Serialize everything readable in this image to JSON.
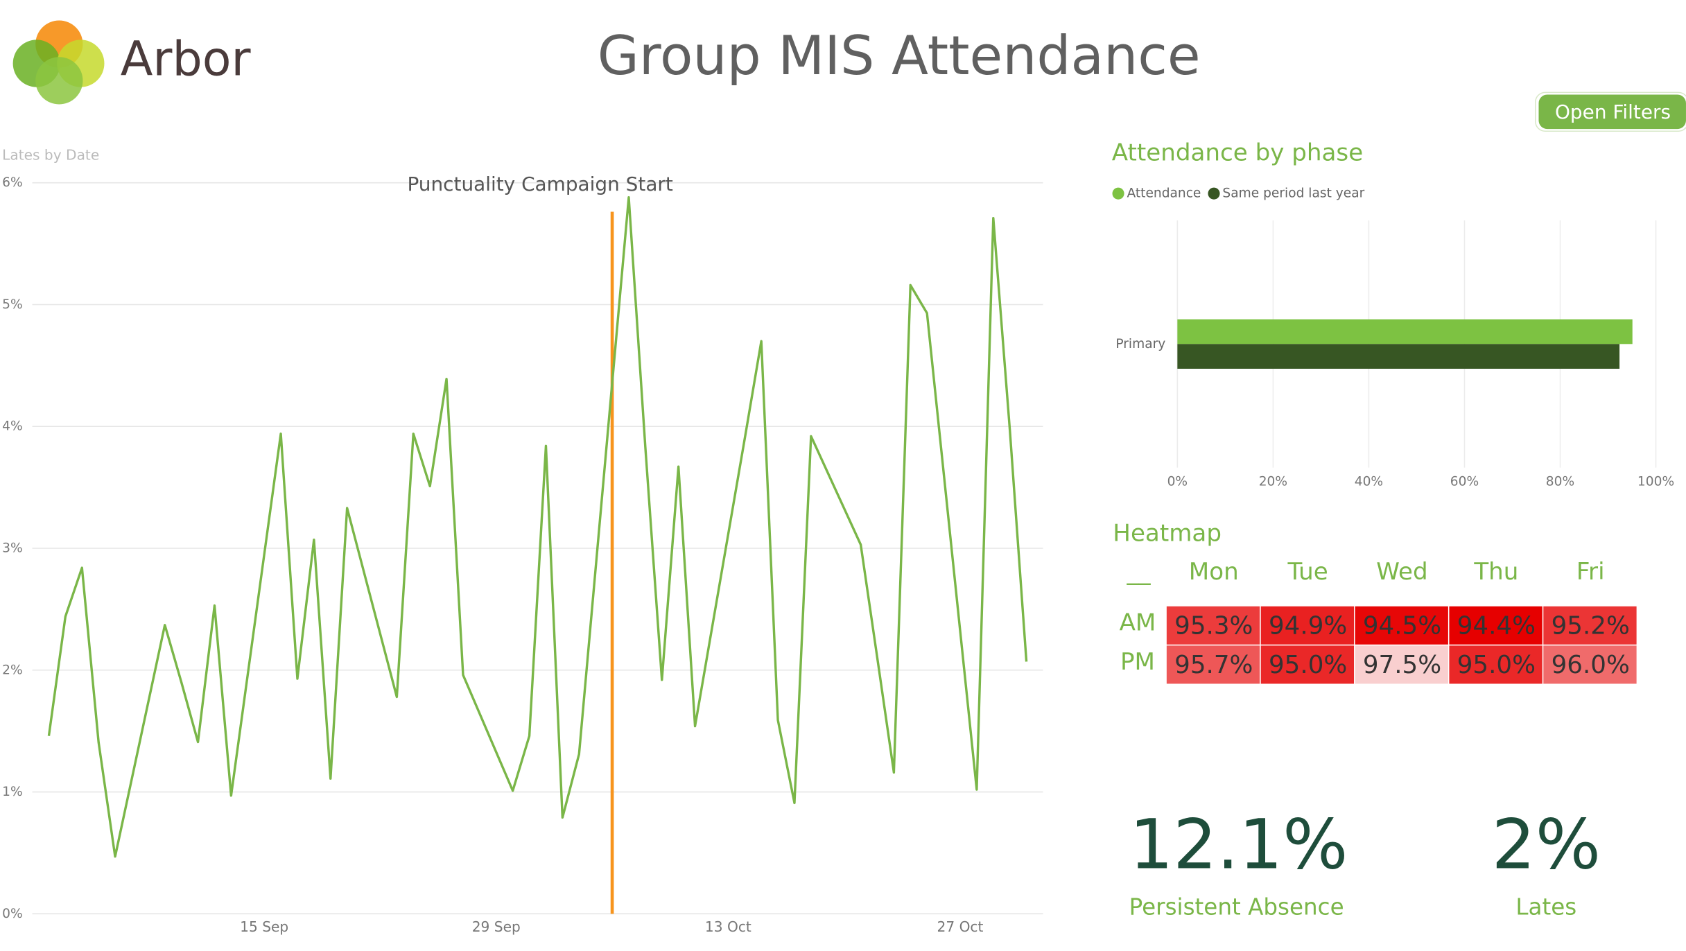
{
  "header": {
    "logo_text": "Arbor",
    "title": "Group MIS Attendance",
    "button": "Open Filters"
  },
  "chart_data": [
    {
      "type": "line",
      "title": "Lates by Date",
      "color": "#7ab648",
      "grid": true,
      "x": [
        "2 Sep",
        "3 Sep",
        "4 Sep",
        "5 Sep",
        "6 Sep",
        "9 Sep",
        "10 Sep",
        "11 Sep",
        "12 Sep",
        "13 Sep",
        "16 Sep",
        "17 Sep",
        "18 Sep",
        "19 Sep",
        "20 Sep",
        "23 Sep",
        "24 Sep",
        "25 Sep",
        "26 Sep",
        "27 Sep",
        "30 Sep",
        "1 Oct",
        "2 Oct",
        "3 Oct",
        "4 Oct",
        "7 Oct",
        "8 Oct",
        "9 Oct",
        "10 Oct",
        "11 Oct",
        "14 Oct",
        "15 Oct",
        "16 Oct",
        "17 Oct",
        "18 Oct",
        "21 Oct",
        "22 Oct",
        "23 Oct",
        "24 Oct",
        "25 Oct",
        "28 Oct",
        "29 Oct",
        "30 Oct",
        "31 Oct"
      ],
      "values": [
        1.46,
        2.44,
        2.84,
        1.41,
        0.47,
        2.37,
        1.9,
        1.41,
        2.53,
        0.97,
        3.94,
        1.93,
        3.07,
        1.11,
        3.33,
        1.78,
        3.94,
        3.51,
        4.39,
        1.96,
        1.01,
        1.46,
        3.84,
        0.79,
        1.31,
        5.88,
        3.83,
        1.92,
        3.67,
        1.54,
        3.9,
        4.7,
        1.59,
        0.91,
        3.92,
        3.03,
        2.1,
        1.16,
        5.16,
        4.93,
        1.02,
        5.71,
        3.97,
        2.07
      ],
      "xlim": [
        "1 Sep",
        "1 Nov"
      ],
      "xticks": [
        "15 Sep",
        "29 Sep",
        "13 Oct",
        "27 Oct"
      ],
      "ylim": [
        0,
        6
      ],
      "yticks": [
        {
          "value": 0,
          "label": "0%"
        },
        {
          "value": 1,
          "label": "1%"
        },
        {
          "value": 2,
          "label": "2%"
        },
        {
          "value": 3,
          "label": "3%"
        },
        {
          "value": 4,
          "label": "4%"
        },
        {
          "value": 5,
          "label": "5%"
        },
        {
          "value": 6,
          "label": "6%"
        }
      ],
      "annotations": [
        {
          "text": "Punctuality Campaign Start",
          "x": "6 Oct",
          "color": "#f7941d"
        }
      ]
    },
    {
      "type": "bar",
      "orientation": "horizontal",
      "title": "Attendance by phase",
      "grid": true,
      "categories": [
        "Primary"
      ],
      "series": [
        {
          "name": "Attendance",
          "color": "#7dc242",
          "values": [
            95.1
          ]
        },
        {
          "name": "Same period last year",
          "color": "#375623",
          "values": [
            92.4
          ]
        }
      ],
      "xlim": [
        0,
        100
      ],
      "xticks": [
        {
          "value": 0,
          "label": "0%"
        },
        {
          "value": 20,
          "label": "20%"
        },
        {
          "value": 40,
          "label": "40%"
        },
        {
          "value": 60,
          "label": "60%"
        },
        {
          "value": 80,
          "label": "80%"
        },
        {
          "value": 100,
          "label": "100%"
        }
      ]
    },
    {
      "type": "heatmap",
      "title": "Heatmap",
      "corner_label": "__",
      "x": [
        "Mon",
        "Tue",
        "Wed",
        "Thu",
        "Fri"
      ],
      "y": [
        "AM",
        "PM"
      ],
      "values": [
        [
          95.3,
          94.9,
          94.5,
          94.4,
          95.2
        ],
        [
          95.7,
          95.0,
          97.5,
          95.0,
          96.0
        ]
      ],
      "value_labels": [
        [
          "95.3%",
          "94.9%",
          "94.5%",
          "94.4%",
          "95.2%"
        ],
        [
          "95.7%",
          "95.0%",
          "97.5%",
          "95.0%",
          "96.0%"
        ]
      ],
      "color_min": "#e60000",
      "color_max": "#f9cfcf"
    }
  ],
  "kpis": [
    {
      "value": "12.1%",
      "label": "Persistent Absence"
    },
    {
      "value": "2%",
      "label": "Lates"
    }
  ]
}
